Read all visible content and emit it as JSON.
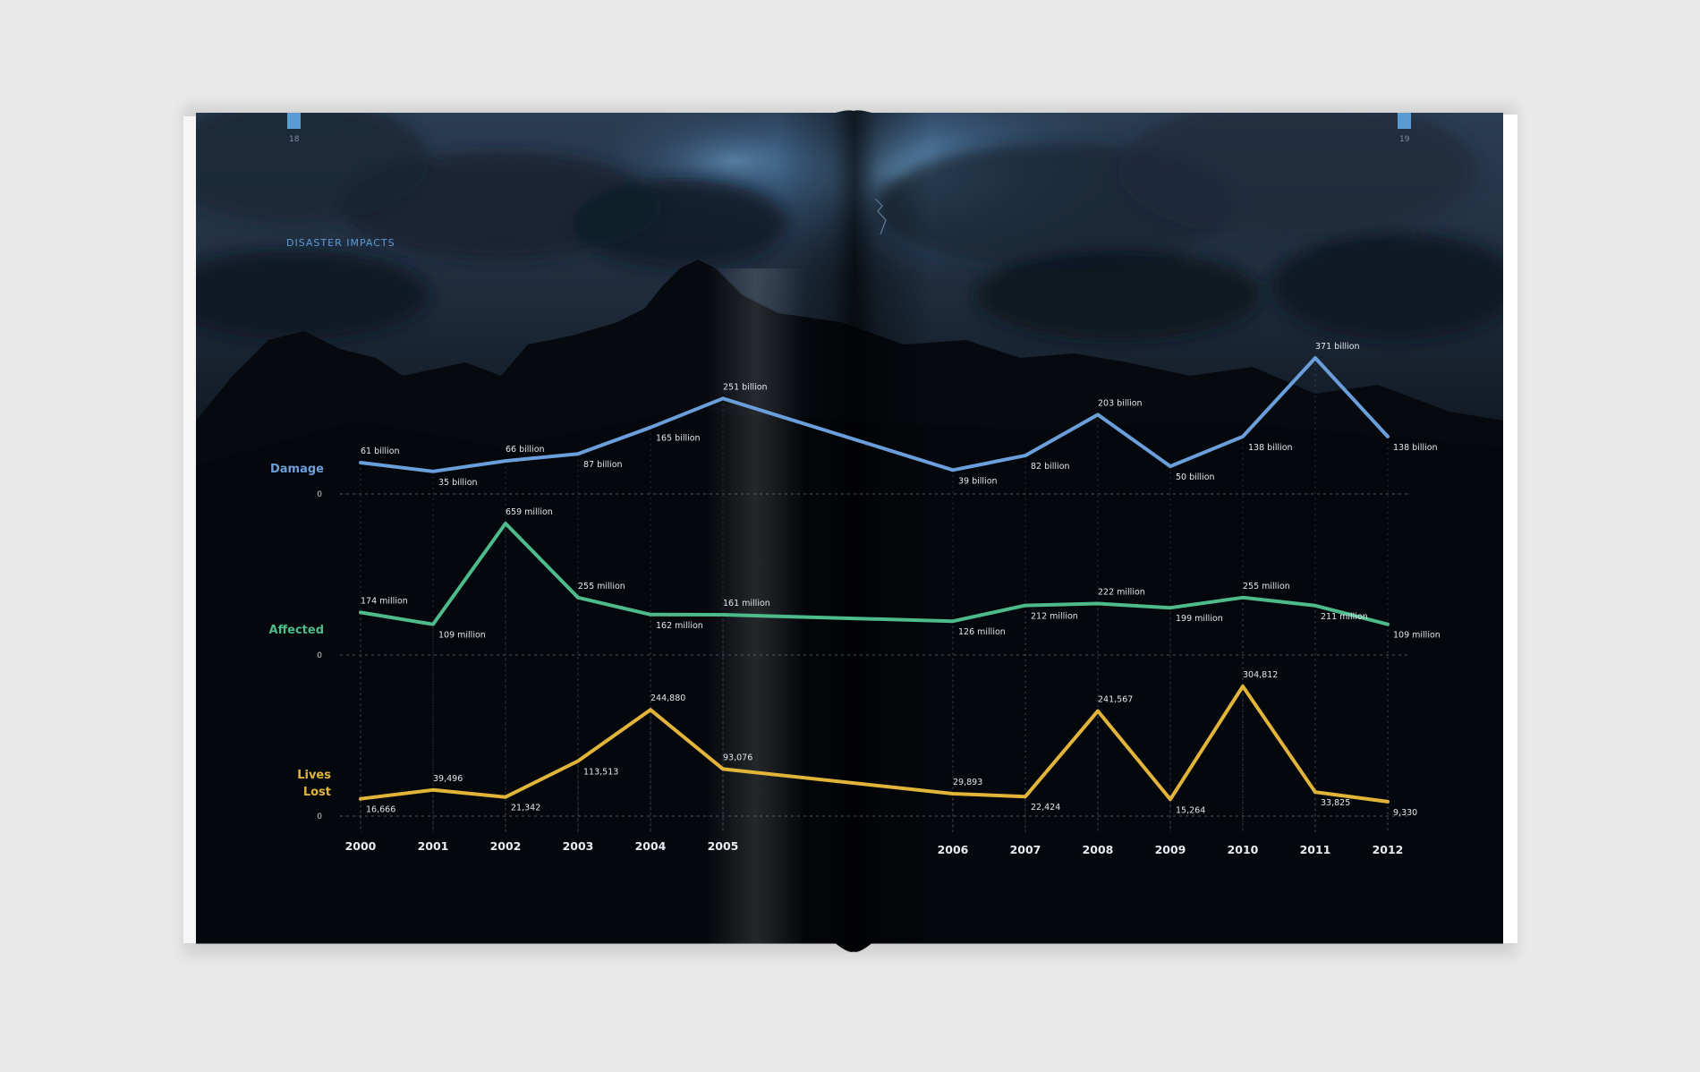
{
  "page": {
    "left_page_number": "18",
    "right_page_number": "19",
    "section_title": "DISASTER IMPACTS",
    "accent_color": "#5b9bd5"
  },
  "chart_data": {
    "type": "line",
    "x": [
      "2000",
      "2001",
      "2002",
      "2003",
      "2004",
      "2005",
      "2006",
      "2007",
      "2008",
      "2009",
      "2010",
      "2011",
      "2012"
    ],
    "series": [
      {
        "name": "Damage",
        "unit": "billion USD",
        "color": "#6b9fdc",
        "values": [
          61,
          35,
          66,
          87,
          165,
          251,
          39,
          82,
          203,
          50,
          138,
          371,
          138
        ],
        "labels": [
          "61 billion",
          "35 billion",
          "66 billion",
          "87 billion",
          "165 billion",
          "251 billion",
          "39 billion",
          "82 billion",
          "203 billion",
          "50 billion",
          "138 billion",
          "371 billion",
          "138 billion"
        ],
        "baseline_label": "0"
      },
      {
        "name": "Affected",
        "unit": "million people",
        "color": "#4dbb8c",
        "values": [
          174,
          109,
          659,
          255,
          162,
          161,
          126,
          212,
          222,
          199,
          255,
          211,
          109
        ],
        "labels": [
          "174 million",
          "109 million",
          "659 million",
          "255 million",
          "162 million",
          "161 million",
          "126 million",
          "212 million",
          "222 million",
          "199 million",
          "255 million",
          "211 million",
          "109 million"
        ],
        "baseline_label": "0"
      },
      {
        "name_lines": [
          "Lives",
          "Lost"
        ],
        "name": "Lives Lost",
        "unit": "deaths",
        "color": "#e2b53a",
        "values": [
          16666,
          39496,
          21342,
          113513,
          244880,
          93076,
          29893,
          22424,
          241567,
          15264,
          304812,
          33825,
          9330
        ],
        "labels": [
          "16,666",
          "39,496",
          "21,342",
          "113,513",
          "244,880",
          "93,076",
          "29,893",
          "22,424",
          "241,567",
          "15,264",
          "304,812",
          "33,825",
          "9,330"
        ],
        "baseline_label": "0"
      }
    ]
  }
}
